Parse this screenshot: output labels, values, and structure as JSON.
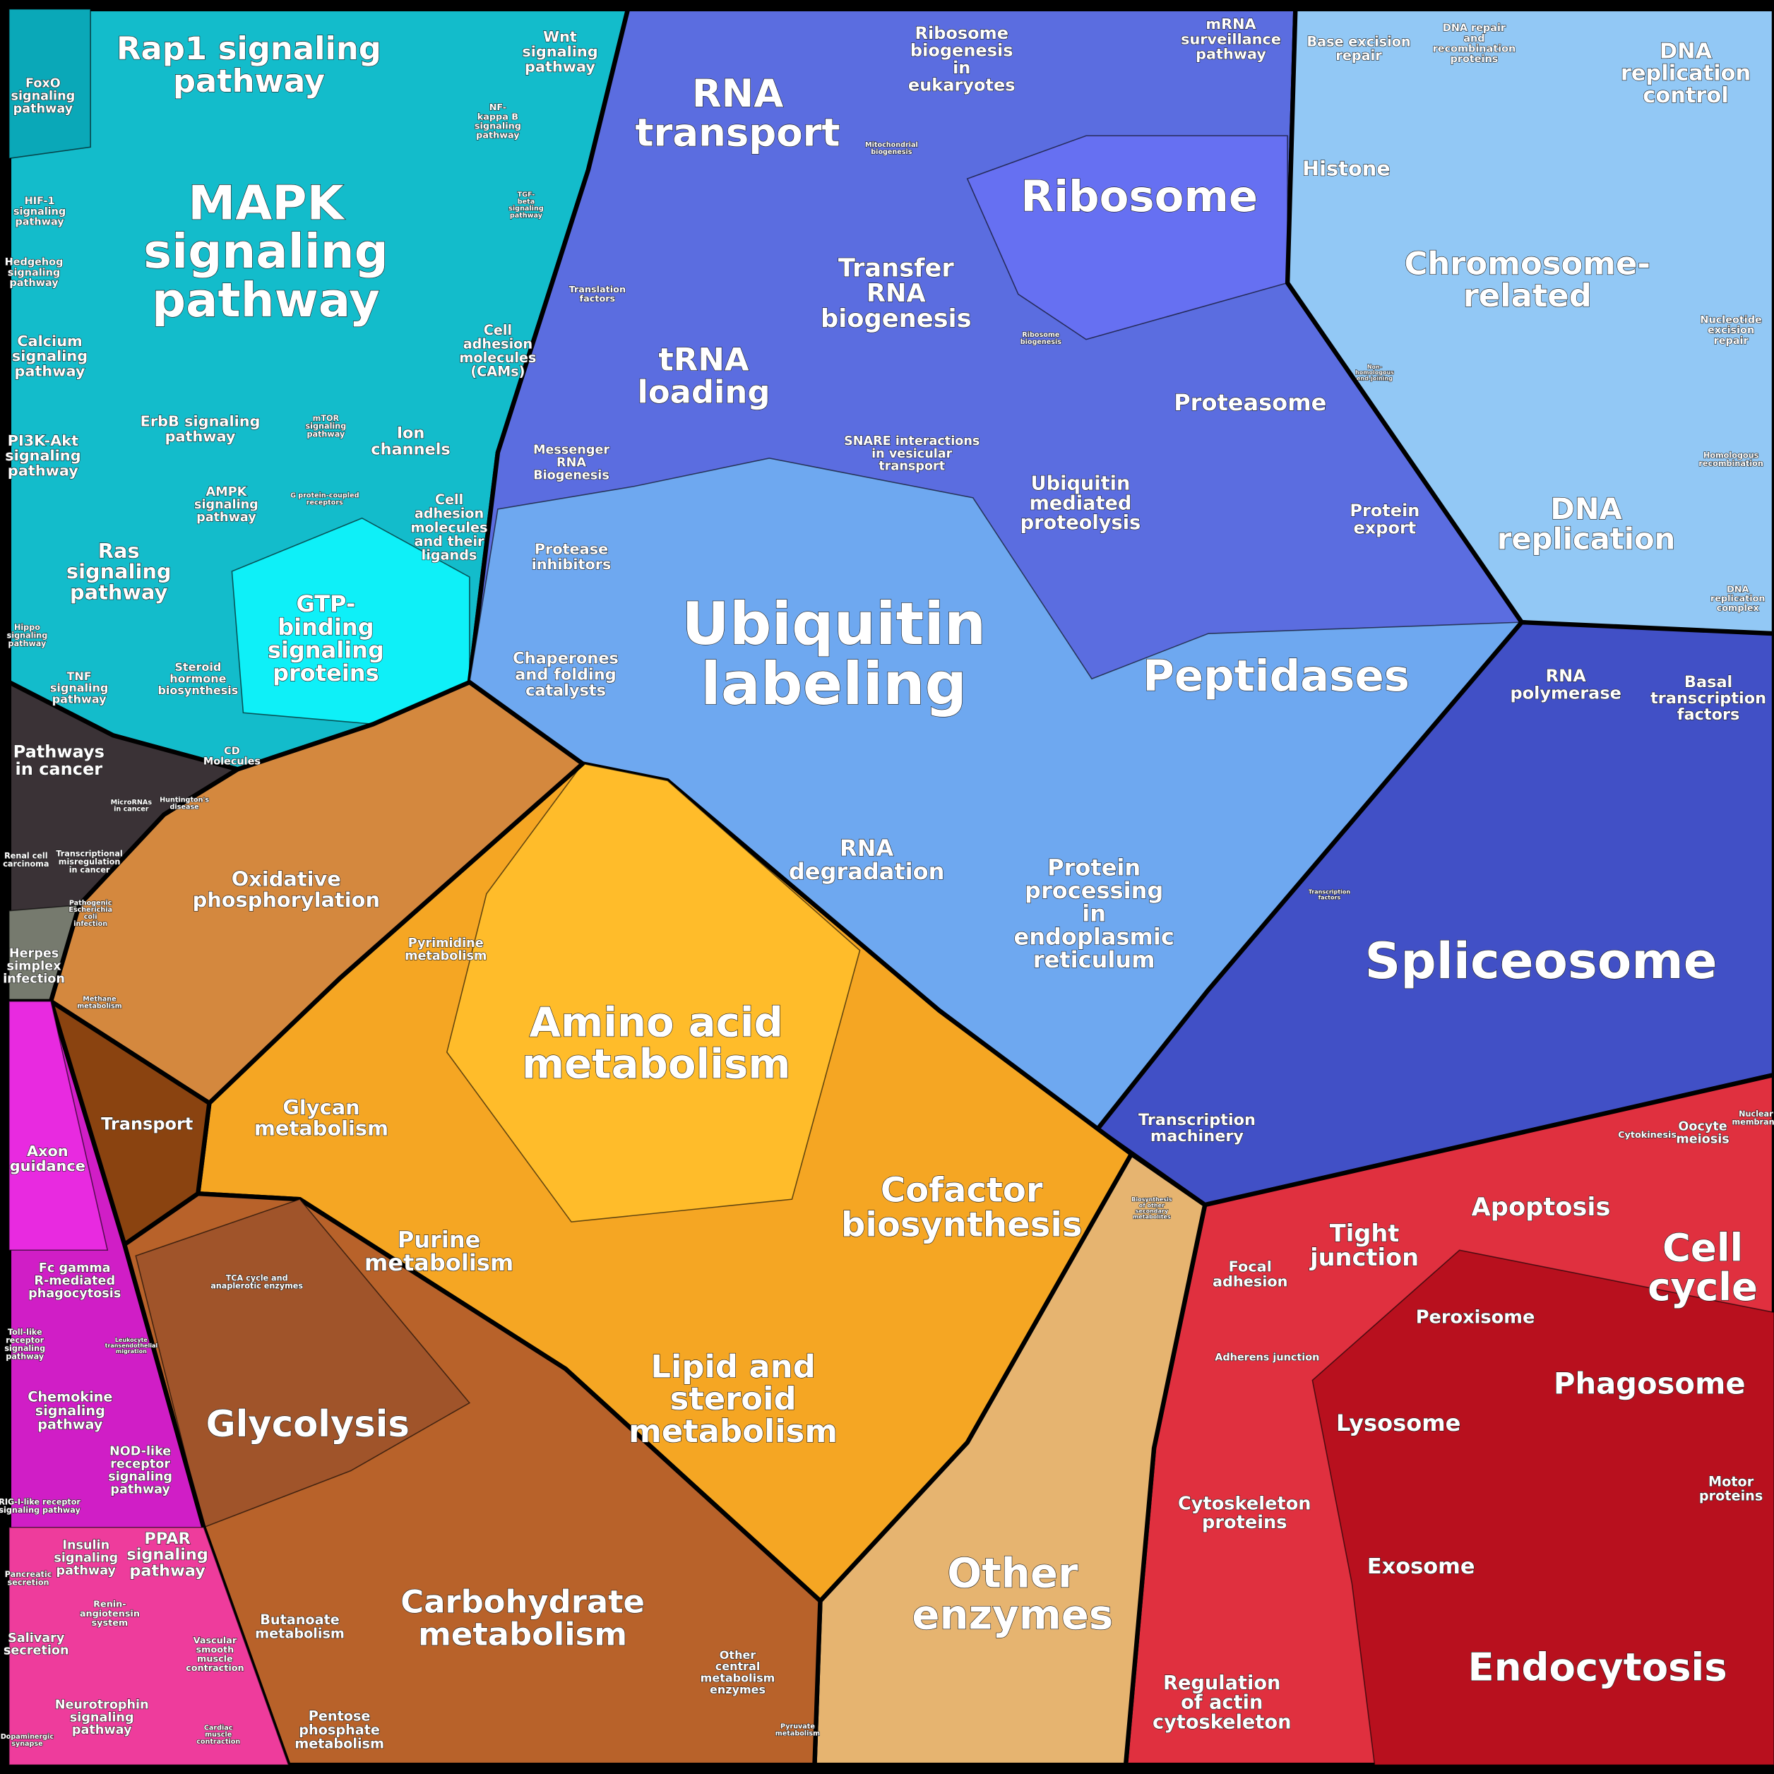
{
  "labels": [
    [
      "Rap1 signaling",
      "pathway"
    ],
    [
      "Wnt",
      "signaling",
      "pathway"
    ],
    [
      "FoxO",
      "signaling",
      "pathway"
    ],
    [
      "MAPK",
      "signaling",
      "pathway"
    ],
    [
      "NF-",
      "kappa B",
      "signaling",
      "pathway"
    ],
    [
      "HIF-1",
      "signaling",
      "pathway"
    ],
    [
      "TGF-",
      "beta",
      "signaling",
      "pathway"
    ],
    [
      "Hedgehog",
      "signaling",
      "pathway"
    ],
    [
      "Calcium",
      "signaling",
      "pathway"
    ],
    [
      "Cell",
      "adhesion",
      "molecules",
      "(CAMs)"
    ],
    [
      "ErbB signaling",
      "pathway"
    ],
    [
      "mTOR",
      "signaling",
      "pathway"
    ],
    [
      "PI3K-Akt",
      "signaling",
      "pathway"
    ],
    [
      "Ion",
      "channels"
    ],
    [
      "AMPK",
      "signaling",
      "pathway"
    ],
    [
      "G protein-coupled",
      "receptors"
    ],
    [
      "Cell",
      "adhesion",
      "molecules",
      "and their",
      "ligands"
    ],
    [
      "Ras",
      "signaling",
      "pathway"
    ],
    [
      "GTP-",
      "binding",
      "signaling",
      "proteins"
    ],
    [
      "Hippo",
      "signaling",
      "pathway"
    ],
    [
      "Steroid",
      "hormone",
      "biosynthesis"
    ],
    [
      "TNF",
      "signaling",
      "pathway"
    ],
    [
      "CD",
      "Molecules"
    ],
    [
      "Pathways",
      "in cancer"
    ],
    [
      "MicroRNAs",
      "in cancer"
    ],
    [
      "Huntington's",
      "disease"
    ],
    [
      "Renal cell",
      "carcinoma"
    ],
    [
      "Transcriptional",
      "misregulation",
      "in cancer"
    ],
    [
      "Pathogenic",
      "Escherichia",
      "coli",
      "infection"
    ],
    [
      "Herpes",
      "simplex",
      "infection"
    ],
    [
      "Oxidative",
      "phosphorylation"
    ],
    [
      "Pyrimidine",
      "metabolism"
    ],
    [
      "Methane",
      "metabolism"
    ],
    [
      "Transport"
    ],
    [
      "Glycan",
      "metabolism"
    ],
    [
      "Amino acid",
      "metabolism"
    ],
    [
      "Purine",
      "metabolism"
    ],
    [
      "Cofactor",
      "biosynthesis"
    ],
    [
      "Biosynthesis",
      "of other",
      "secondary",
      "metabolites"
    ],
    [
      "Lipid and",
      "steroid",
      "metabolism"
    ],
    [
      "TCA cycle and",
      "anaplerotic enzymes"
    ],
    [
      "Glycolysis"
    ],
    [
      "Carbohydrate",
      "metabolism"
    ],
    [
      "Butanoate",
      "metabolism"
    ],
    [
      "Pentose",
      "phosphate",
      "metabolism"
    ],
    [
      "Other",
      "central",
      "metabolism",
      "enzymes"
    ],
    [
      "Pyruvate",
      "metabolism"
    ],
    [
      "Other",
      "enzymes"
    ],
    [
      "Axon",
      "guidance"
    ],
    [
      "Fc gamma",
      "R-mediated",
      "phagocytosis"
    ],
    [
      "Toll-like",
      "receptor",
      "signaling",
      "pathway"
    ],
    [
      "Leukocyte",
      "transendothelial",
      "migration"
    ],
    [
      "Chemokine",
      "signaling",
      "pathway"
    ],
    [
      "NOD-like",
      "receptor",
      "signaling",
      "pathway"
    ],
    [
      "RIG-I-like receptor",
      "signaling pathway"
    ],
    [
      "Insulin",
      "signaling",
      "pathway"
    ],
    [
      "PPAR",
      "signaling",
      "pathway"
    ],
    [
      "Pancreatic",
      "secretion"
    ],
    [
      "Renin-",
      "angiotensin",
      "system"
    ],
    [
      "Salivary",
      "secretion"
    ],
    [
      "Vascular",
      "smooth",
      "muscle",
      "contraction"
    ],
    [
      "Neurotrophin",
      "signaling",
      "pathway"
    ],
    [
      "Cardiac",
      "muscle",
      "contraction"
    ],
    [
      "Dopaminergic",
      "synapse"
    ],
    [
      "RNA",
      "transport"
    ],
    [
      "Ribosome",
      "biogenesis",
      "in",
      "eukaryotes"
    ],
    [
      "mRNA",
      "surveillance",
      "pathway"
    ],
    [
      "Mitochondrial",
      "biogenesis"
    ],
    [
      "Ribosome"
    ],
    [
      "Transfer",
      "RNA",
      "biogenesis"
    ],
    [
      "Translation",
      "factors"
    ],
    [
      "tRNA",
      "loading"
    ],
    [
      "Ribosome",
      "biogenesis"
    ],
    [
      "Messenger",
      "RNA",
      "Biogenesis"
    ],
    [
      "SNARE interactions",
      "in vesicular",
      "transport"
    ],
    [
      "Ubiquitin",
      "mediated",
      "proteolysis"
    ],
    [
      "Proteasome"
    ],
    [
      "Protease",
      "inhibitors"
    ],
    [
      "Protein",
      "export"
    ],
    [
      "Ubiquitin",
      "labeling"
    ],
    [
      "Chaperones",
      "and folding",
      "catalysts"
    ],
    [
      "Peptidases"
    ],
    [
      "RNA",
      "degradation"
    ],
    [
      "Protein",
      "processing",
      "in",
      "endoplasmic",
      "reticulum"
    ],
    [
      "Transcription",
      "machinery"
    ],
    [
      "Base excision",
      "repair"
    ],
    [
      "DNA repair",
      "and",
      "recombination",
      "proteins"
    ],
    [
      "DNA",
      "replication",
      "control"
    ],
    [
      "Histone"
    ],
    [
      "Chromosome-",
      "related"
    ],
    [
      "Nucleotide",
      "excision",
      "repair"
    ],
    [
      "Non-",
      "homologous",
      "end-joining"
    ],
    [
      "Homologous",
      "recombination"
    ],
    [
      "DNA",
      "replication"
    ],
    [
      "DNA",
      "replication",
      "complex"
    ],
    [
      "RNA",
      "polymerase"
    ],
    [
      "Basal",
      "transcription",
      "factors"
    ],
    [
      "Transcription",
      "factors"
    ],
    [
      "Spliceosome"
    ],
    [
      "Cytokinesis"
    ],
    [
      "Oocyte",
      "meiosis"
    ],
    [
      "Nuclear",
      "membrane"
    ],
    [
      "Apoptosis"
    ],
    [
      "Cell",
      "cycle"
    ],
    [
      "Tight",
      "junction"
    ],
    [
      "Focal",
      "adhesion"
    ],
    [
      "Peroxisome"
    ],
    [
      "Adherens junction"
    ],
    [
      "Phagosome"
    ],
    [
      "Lysosome"
    ],
    [
      "Motor",
      "proteins"
    ],
    [
      "Cytoskeleton",
      "proteins"
    ],
    [
      "Exosome"
    ],
    [
      "Endocytosis"
    ],
    [
      "Regulation",
      "of actin",
      "cytoskeleton"
    ]
  ]
}
